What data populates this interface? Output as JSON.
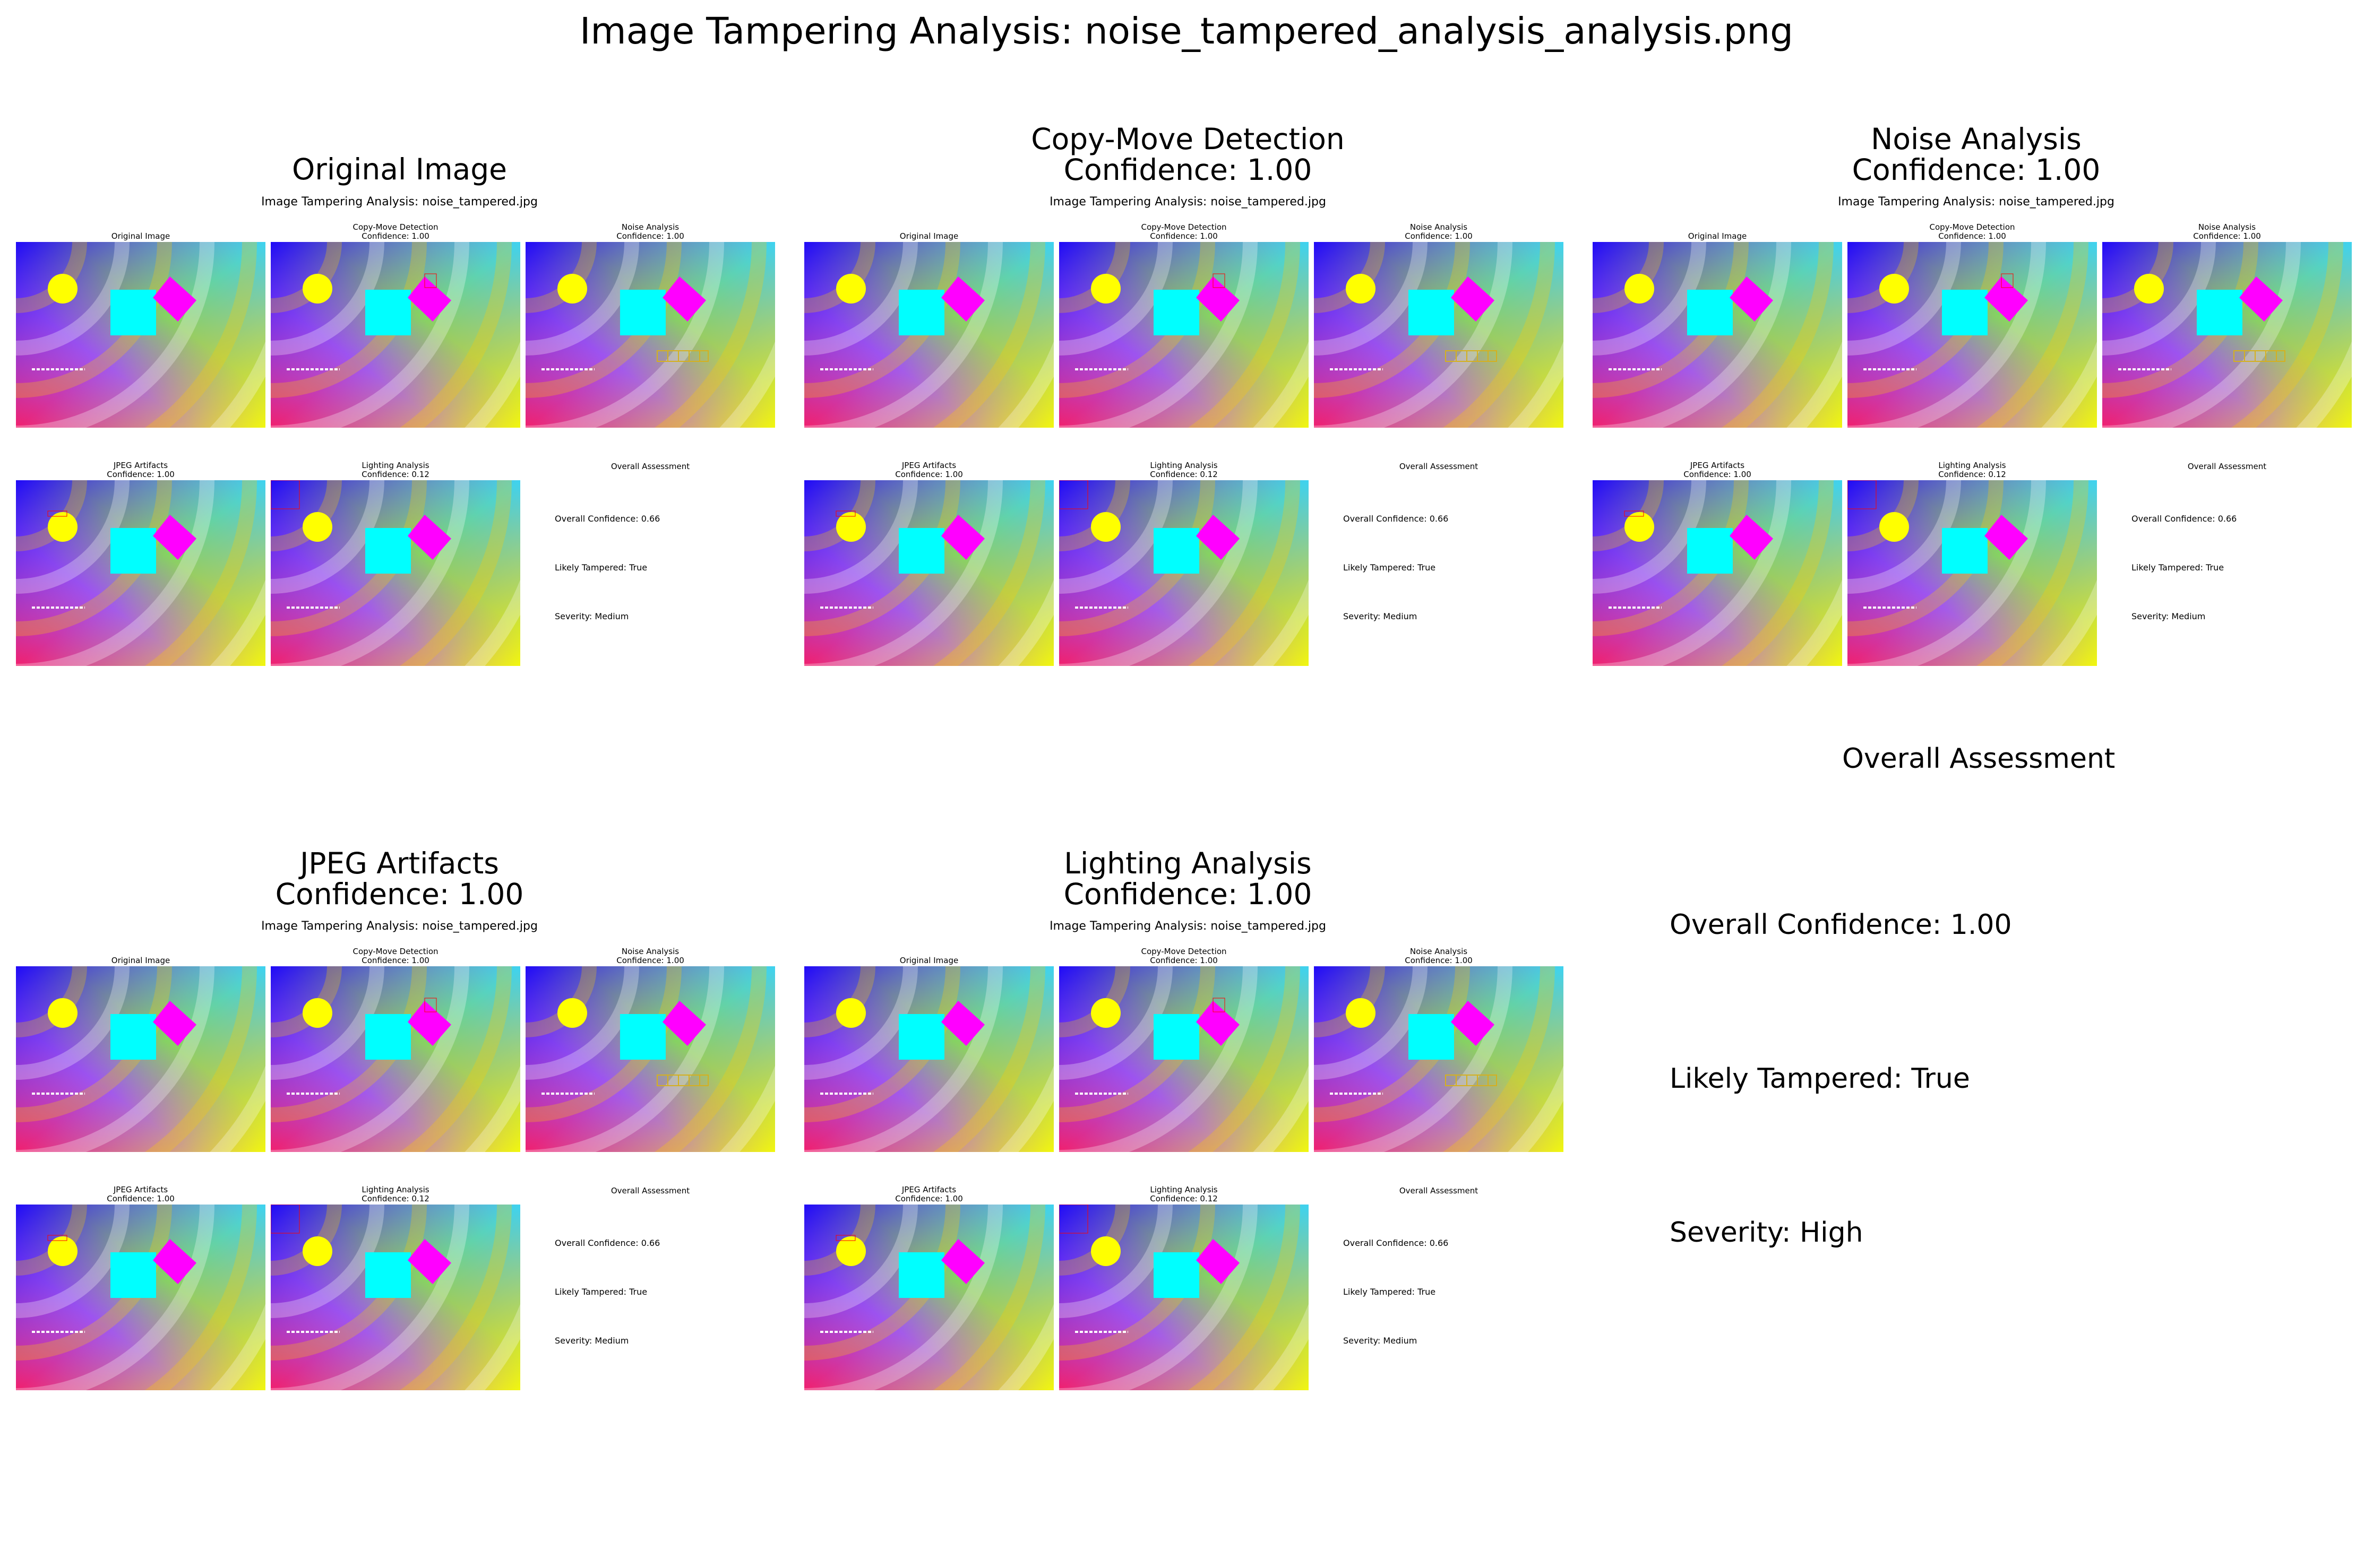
{
  "suptitle": "Image Tampering Analysis: noise_tampered_analysis_analysis.png",
  "panels": [
    {
      "title": "Original Image"
    },
    {
      "title": "Copy-Move Detection\nConfidence: 1.00"
    },
    {
      "title": "Noise Analysis\nConfidence: 1.00"
    },
    {
      "title": "JPEG Artifacts\nConfidence: 1.00"
    },
    {
      "title": "Lighting Analysis\nConfidence: 1.00"
    }
  ],
  "inner": {
    "suptitle": "Image Tampering Analysis: noise_tampered.jpg",
    "tiles": [
      "Original Image",
      "Copy-Move Detection\nConfidence: 1.00",
      "Noise Analysis\nConfidence: 1.00",
      "JPEG Artifacts\nConfidence: 1.00",
      "Lighting Analysis\nConfidence: 0.12"
    ],
    "assessment": {
      "title": "Overall Assessment",
      "confidence": "Overall Confidence: 0.66",
      "tampered": "Likely Tampered: True",
      "severity": "Severity: Medium"
    }
  },
  "overall": {
    "title": "Overall Assessment",
    "confidence": "Overall Confidence: 1.00",
    "tampered": "Likely Tampered: True",
    "severity": "Severity: High"
  },
  "colors": {
    "circle": "#ffff00",
    "square": "#00ffff",
    "diamond": "#ff00ff",
    "highlight_red": "#ff0000",
    "noise_box": "#d4b020"
  }
}
